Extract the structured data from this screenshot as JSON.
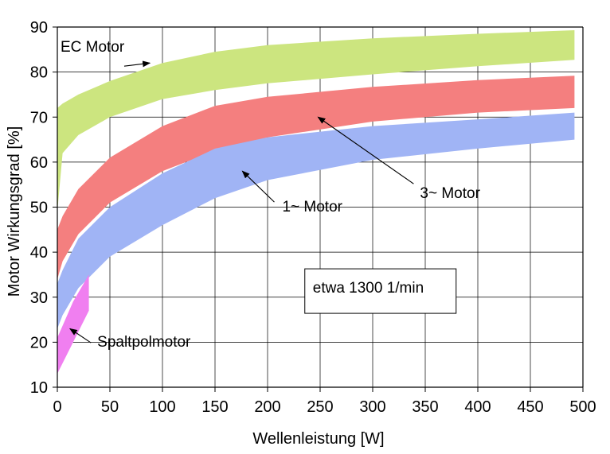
{
  "chart_data": {
    "type": "area",
    "xlabel": "Wellenleistung [W]",
    "ylabel": "Motor Wirkungsgrad [%]",
    "xlim": [
      0,
      500
    ],
    "ylim": [
      10,
      90
    ],
    "xticks": [
      0,
      50,
      100,
      150,
      200,
      250,
      300,
      350,
      400,
      450,
      500
    ],
    "yticks": [
      10,
      20,
      30,
      40,
      50,
      60,
      70,
      80,
      90
    ],
    "grid": true,
    "series": [
      {
        "name": "EC Motor",
        "color": "#cce57f",
        "x": [
          0,
          5,
          20,
          50,
          100,
          150,
          200,
          300,
          400,
          492
        ],
        "upper": [
          72,
          73,
          75,
          78,
          82,
          84.5,
          86,
          87.5,
          88.5,
          89.3
        ],
        "lower": [
          49,
          62,
          66,
          70,
          74,
          76,
          77.5,
          79.5,
          81.3,
          82.7
        ]
      },
      {
        "name": "3~ Motor",
        "color": "#f47f7f",
        "x": [
          0,
          5,
          20,
          50,
          100,
          150,
          200,
          300,
          400,
          492
        ],
        "upper": [
          45,
          48,
          54,
          61,
          68,
          72.5,
          74.5,
          76.7,
          78.2,
          79.2
        ],
        "lower": [
          34,
          38,
          44,
          51,
          58,
          62.5,
          65.5,
          69,
          71,
          72
        ]
      },
      {
        "name": "1~ Motor",
        "color": "#a0b4f5",
        "x": [
          0,
          5,
          20,
          50,
          100,
          150,
          200,
          300,
          400,
          492
        ],
        "upper": [
          33,
          36,
          43,
          50,
          57.5,
          63,
          65.5,
          68,
          69.5,
          71
        ],
        "lower": [
          23,
          26,
          32,
          39,
          46,
          52,
          56,
          60.5,
          63,
          65
        ]
      },
      {
        "name": "Spaltpolmotor",
        "color": "#f07ff0",
        "x": [
          0,
          15,
          30
        ],
        "upper": [
          21,
          29,
          35
        ],
        "lower": [
          13,
          20,
          27
        ]
      }
    ],
    "annotations": [
      {
        "text": "EC Motor",
        "x": 3,
        "y": 84.5,
        "arrow_to": [
          88,
          82
        ]
      },
      {
        "text": "3~ Motor",
        "x": 345,
        "y": 52,
        "arrow_to": [
          248,
          70
        ]
      },
      {
        "text": "1~ Motor",
        "x": 214,
        "y": 49,
        "arrow_to": [
          176,
          58
        ]
      },
      {
        "text": "Spaltpolmotor",
        "x": 38,
        "y": 19,
        "arrow_to": [
          12,
          23
        ]
      },
      {
        "text": "etwa 1300 1/min",
        "x": 243,
        "y": 31,
        "boxed": true
      }
    ]
  }
}
